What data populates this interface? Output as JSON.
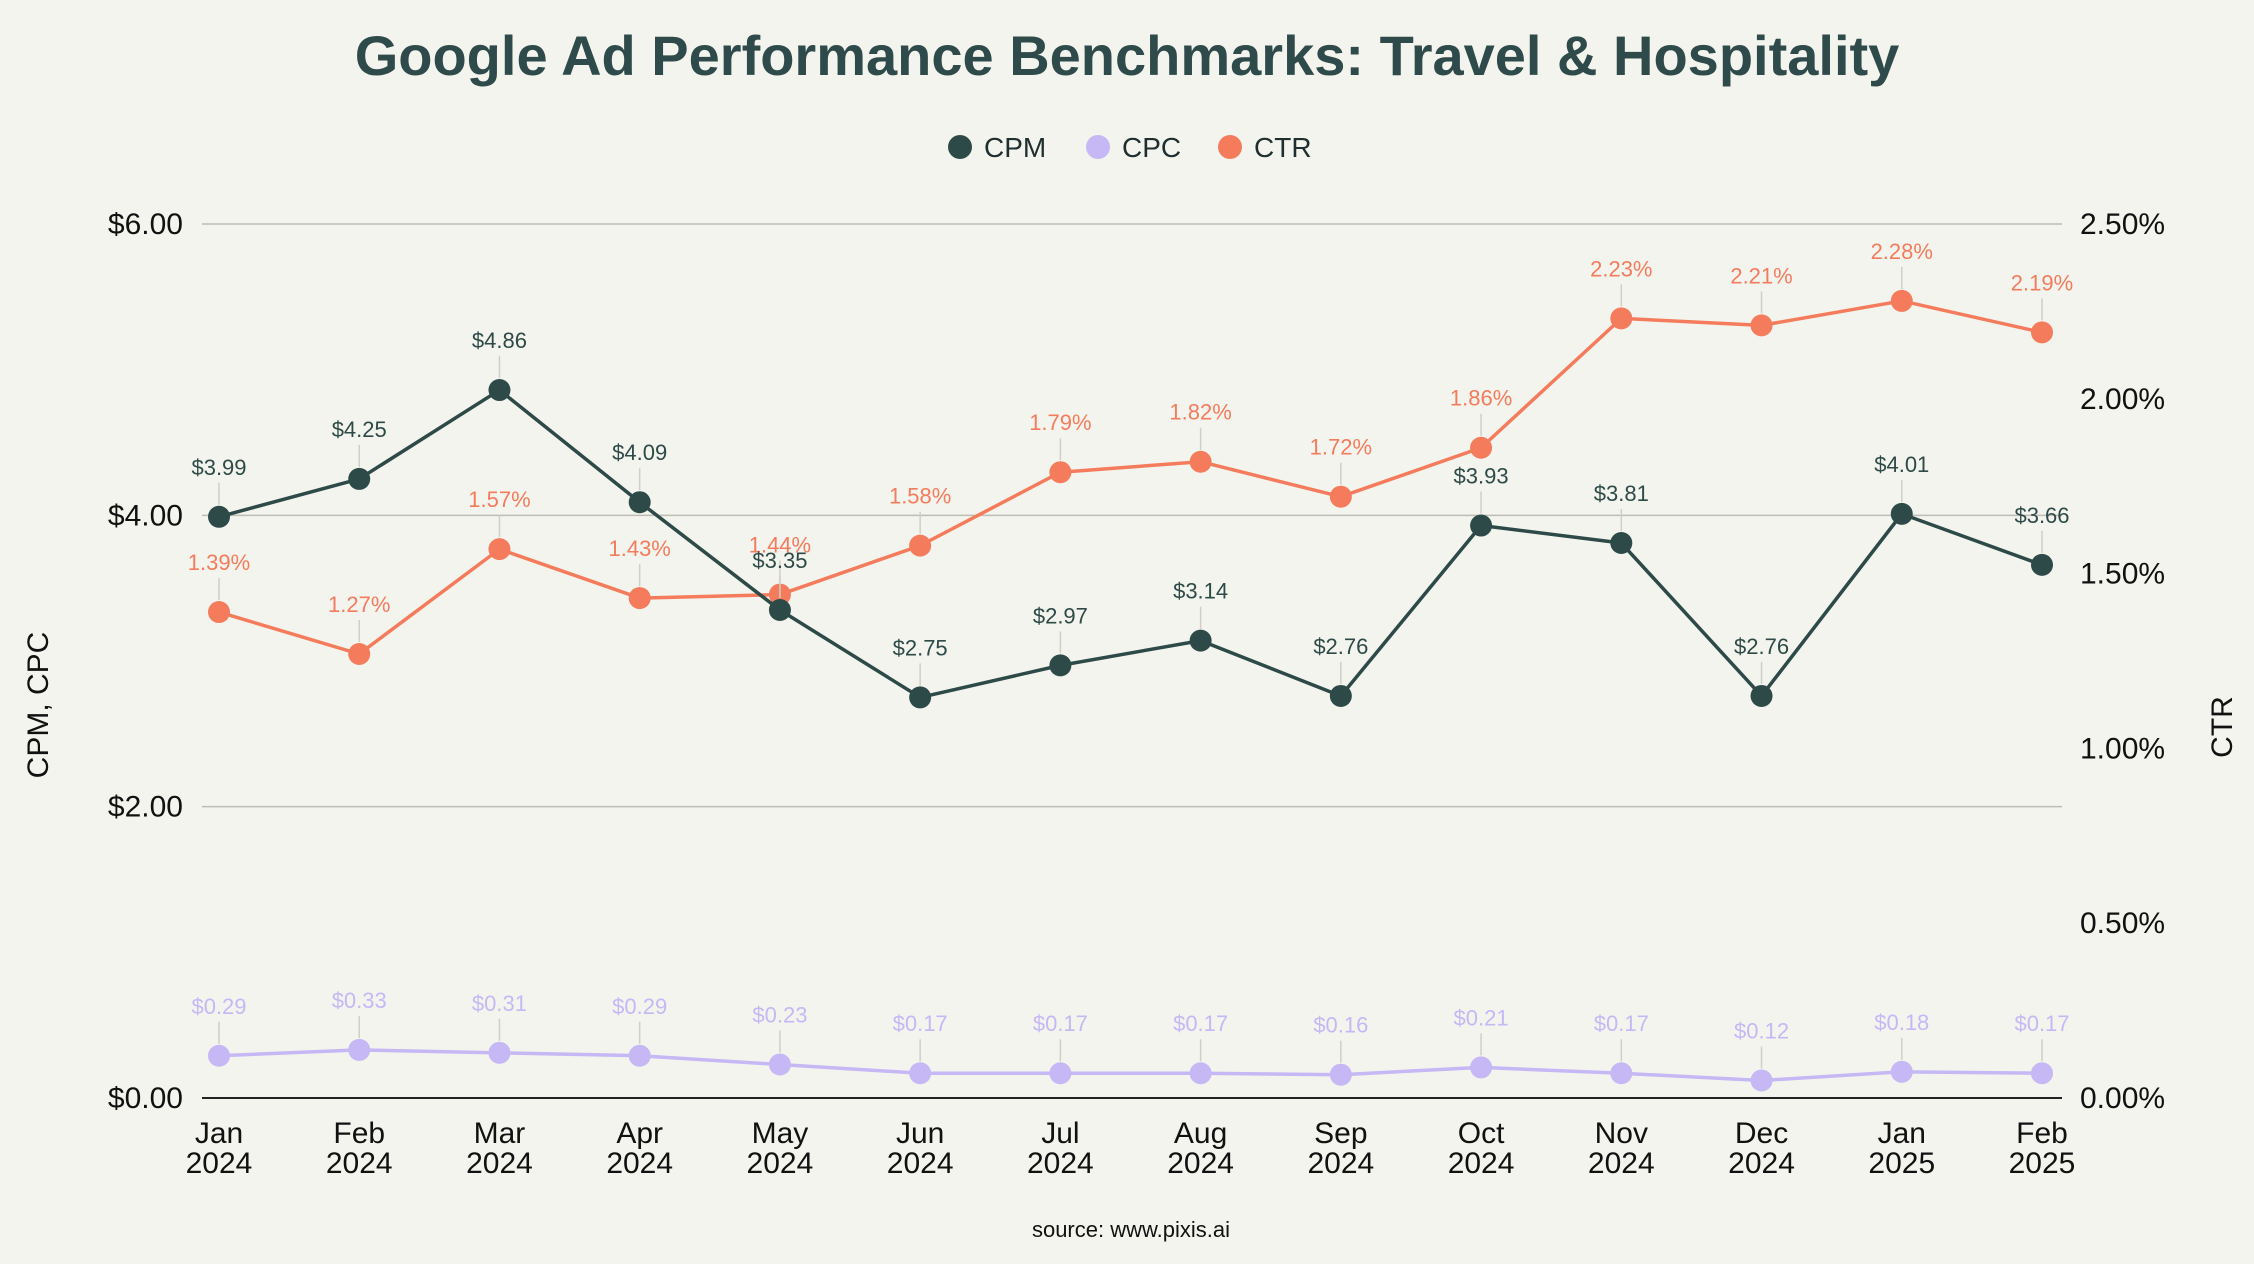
{
  "chart_data": {
    "type": "line",
    "title": "Google Ad Performance Benchmarks: Travel & Hospitality",
    "categories": [
      [
        "Jan",
        "2024"
      ],
      [
        "Feb",
        "2024"
      ],
      [
        "Mar",
        "2024"
      ],
      [
        "Apr",
        "2024"
      ],
      [
        "May",
        "2024"
      ],
      [
        "Jun",
        "2024"
      ],
      [
        "Jul",
        "2024"
      ],
      [
        "Aug",
        "2024"
      ],
      [
        "Sep",
        "2024"
      ],
      [
        "Oct",
        "2024"
      ],
      [
        "Nov",
        "2024"
      ],
      [
        "Dec",
        "2024"
      ],
      [
        "Jan",
        "2025"
      ],
      [
        "Feb",
        "2025"
      ]
    ],
    "ylabel_left": "CPM, CPC",
    "ylabel_right": "CTR",
    "ylim_left": [
      0,
      6
    ],
    "ylim_right": [
      0,
      2.5
    ],
    "left_ticks": [
      "$0.00",
      "$2.00",
      "$4.00",
      "$6.00"
    ],
    "right_ticks": [
      "0.00%",
      "0.50%",
      "1.00%",
      "1.50%",
      "2.00%",
      "2.50%"
    ],
    "legend_position": "top-center",
    "grid": "horizontal",
    "series": [
      {
        "name": "CPM",
        "axis": "left",
        "color": "#2e4a48",
        "values": [
          3.99,
          4.25,
          4.86,
          4.09,
          3.35,
          2.75,
          2.97,
          3.14,
          2.76,
          3.93,
          3.81,
          2.76,
          4.01,
          3.66
        ],
        "labels": [
          "$3.99",
          "$4.25",
          "$4.86",
          "$4.09",
          "$3.35",
          "$2.75",
          "$2.97",
          "$3.14",
          "$2.76",
          "$3.93",
          "$3.81",
          "$2.76",
          "$4.01",
          "$3.66"
        ]
      },
      {
        "name": "CPC",
        "axis": "left",
        "color": "#c5b8f5",
        "values": [
          0.29,
          0.33,
          0.31,
          0.29,
          0.23,
          0.17,
          0.17,
          0.17,
          0.16,
          0.21,
          0.17,
          0.12,
          0.18,
          0.17
        ],
        "labels": [
          "$0.29",
          "$0.33",
          "$0.31",
          "$0.29",
          "$0.23",
          "$0.17",
          "$0.17",
          "$0.17",
          "$0.16",
          "$0.21",
          "$0.17",
          "$0.12",
          "$0.18",
          "$0.17"
        ]
      },
      {
        "name": "CTR",
        "axis": "right",
        "color": "#f47c5c",
        "values": [
          1.39,
          1.27,
          1.57,
          1.43,
          1.44,
          1.58,
          1.79,
          1.82,
          1.72,
          1.86,
          2.23,
          2.21,
          2.28,
          2.19
        ],
        "labels": [
          "1.39%",
          "1.27%",
          "1.57%",
          "1.43%",
          "1.44%",
          "1.58%",
          "1.79%",
          "1.82%",
          "1.72%",
          "1.86%",
          "2.23%",
          "2.21%",
          "2.28%",
          "2.19%"
        ]
      }
    ],
    "source": "source: www.pixis.ai"
  }
}
